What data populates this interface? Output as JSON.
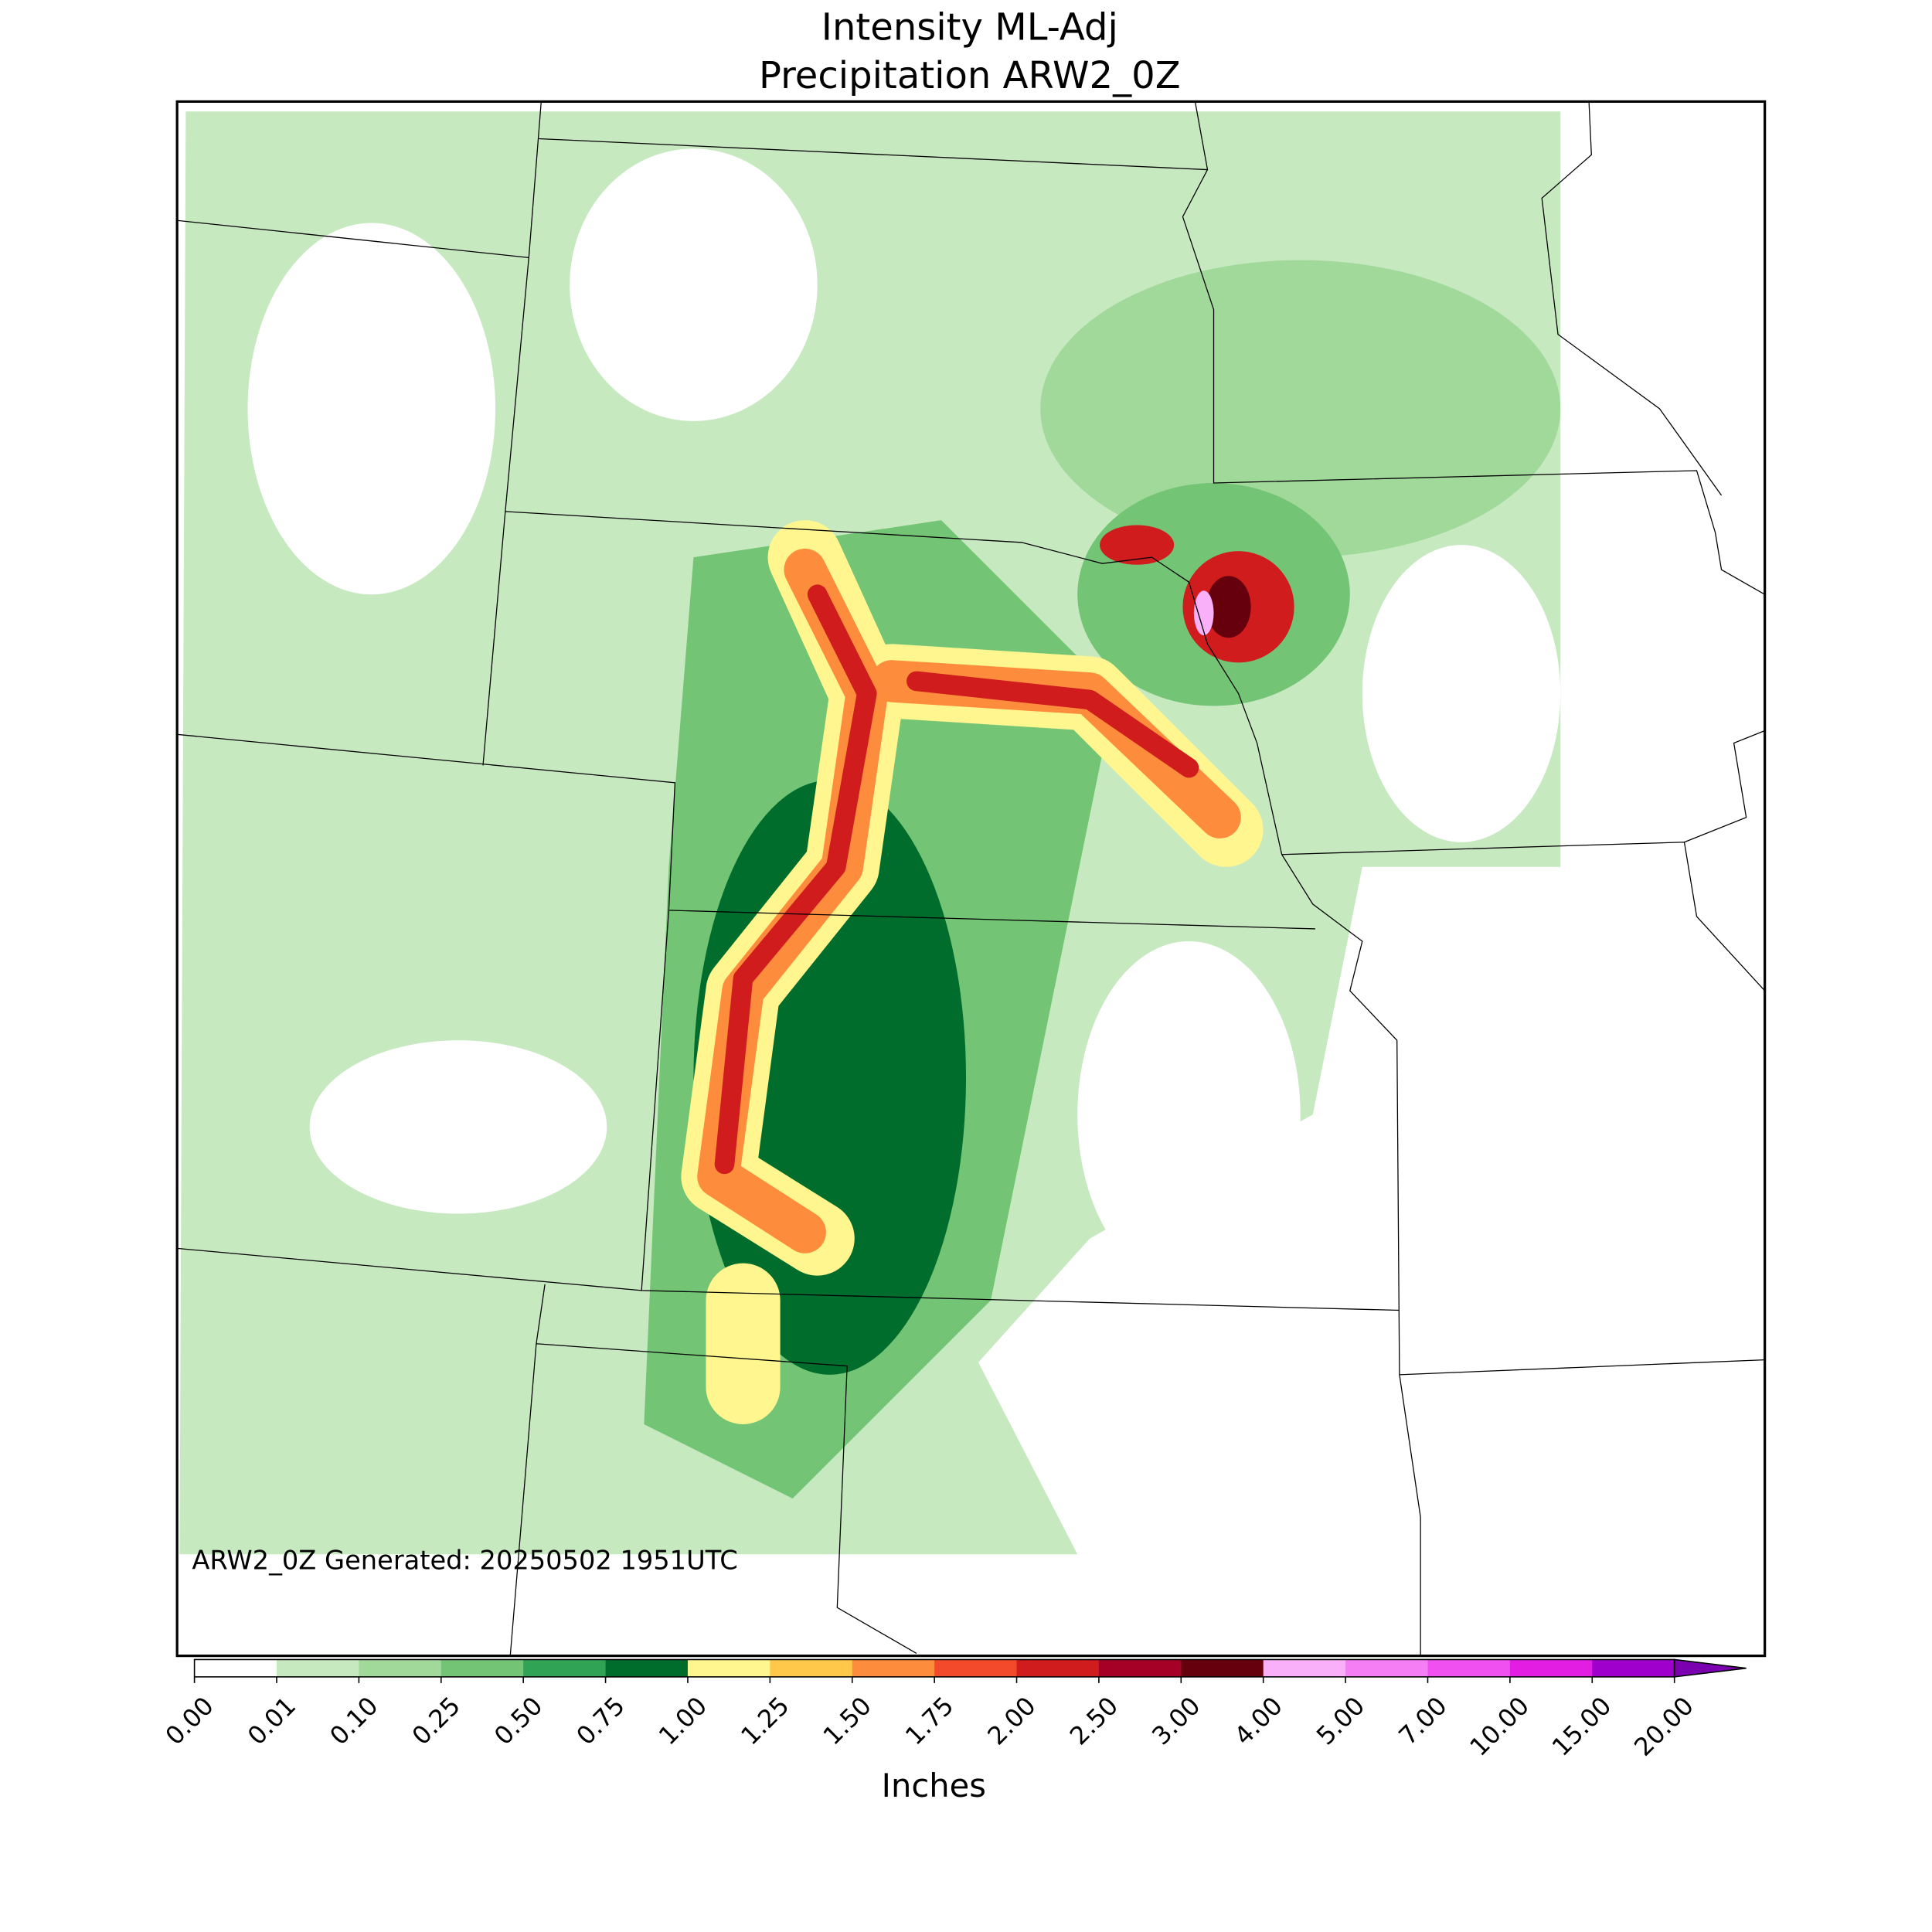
{
  "chart_data": {
    "type": "map",
    "title": "Intensity ML-Adj",
    "subtitle": "Precipitation ARW2_0Z",
    "annotation": "ARW2_0Z Generated: 20250502 1951UTC",
    "colorbar": {
      "label": "Inches",
      "ticks": [
        {
          "value": 0,
          "label": "0.00"
        },
        0.01,
        {
          "value": 0.1,
          "label": "0.10"
        },
        0.25,
        {
          "value": 0.5,
          "label": "0.50"
        },
        0.75,
        {
          "value": 1,
          "label": "1.00"
        },
        1.25,
        {
          "value": 1.5,
          "label": "1.50"
        },
        1.75,
        {
          "value": 2,
          "label": "2.00"
        },
        {
          "value": 2.5,
          "label": "2.50"
        },
        {
          "value": 3,
          "label": "3.00"
        },
        {
          "value": 4,
          "label": "4.00"
        },
        {
          "value": 5,
          "label": "5.00"
        },
        {
          "value": 7,
          "label": "7.00"
        },
        {
          "value": 10,
          "label": "10.00"
        },
        {
          "value": 15,
          "label": "15.00"
        },
        {
          "value": 20,
          "label": "20.00"
        }
      ],
      "colors": [
        "#ffffff",
        "#c7e9c0",
        "#a1d99b",
        "#74c476",
        "#31a354",
        "#006d2c",
        "#fff68f",
        "#ffc84a",
        "#fd8d3c",
        "#f24a2a",
        "#d01c1c",
        "#a50026",
        "#67000d",
        "#f9b0f9",
        "#f57ef5",
        "#f050f0",
        "#e31ee3",
        "#a000cc"
      ],
      "extend_color": "#7a00b0"
    }
  }
}
